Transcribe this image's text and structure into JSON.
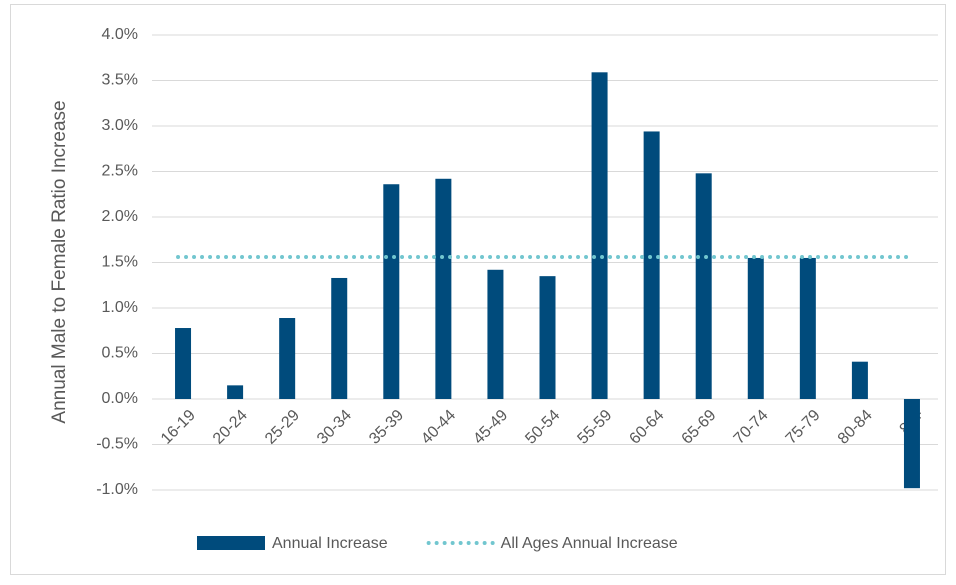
{
  "chart_data": {
    "type": "bar",
    "y_label": "Annual Male to Female Ratio Increase",
    "categories": [
      "16-19",
      "20-24",
      "25-29",
      "30-34",
      "35-39",
      "40-44",
      "45-49",
      "50-54",
      "55-59",
      "60-64",
      "65-69",
      "70-74",
      "75-79",
      "80-84",
      "85+"
    ],
    "series": [
      {
        "name": "Annual Increase",
        "type": "bar",
        "color": "#004b7c",
        "values": [
          0.78,
          0.15,
          0.89,
          1.33,
          2.36,
          2.42,
          1.42,
          1.35,
          3.59,
          2.94,
          2.48,
          1.55,
          1.55,
          0.41,
          -0.98
        ]
      },
      {
        "name": "All Ages Annual Increase",
        "type": "line",
        "color": "#72c6cf",
        "values": [
          1.56,
          1.56,
          1.56,
          1.56,
          1.56,
          1.56,
          1.56,
          1.56,
          1.56,
          1.56,
          1.56,
          1.56,
          1.56,
          1.56,
          1.56
        ]
      }
    ],
    "ylim": [
      -1,
      4
    ],
    "yticks": [
      {
        "value": -1,
        "label": "-1.0%"
      },
      {
        "value": -0.5,
        "label": "-0.5%"
      },
      {
        "value": 0,
        "label": "0.0%"
      },
      {
        "value": 0.5,
        "label": "0.5%"
      },
      {
        "value": 1,
        "label": "1.0%"
      },
      {
        "value": 1.5,
        "label": "1.5%"
      },
      {
        "value": 2,
        "label": "2.0%"
      },
      {
        "value": 2.5,
        "label": "2.5%"
      },
      {
        "value": 3,
        "label": "3.0%"
      },
      {
        "value": 3.5,
        "label": "3.5%"
      },
      {
        "value": 4,
        "label": "4.0%"
      }
    ],
    "grid": true
  }
}
